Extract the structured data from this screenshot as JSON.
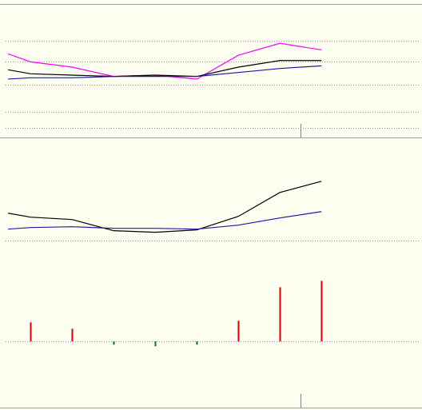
{
  "chart_data": [
    {
      "type": "line",
      "x": [
        0.46,
        1,
        2,
        3,
        4,
        5,
        6,
        7,
        8
      ],
      "xlim": [
        0.4,
        10.38
      ],
      "ylim": [
        0,
        100
      ],
      "yticks": [
        7,
        19,
        40,
        57,
        73
      ],
      "grid": true,
      "series": [
        {
          "color": "#ff00ff",
          "values": [
            63,
            57,
            53,
            46,
            47,
            44,
            62,
            71,
            66
          ]
        },
        {
          "color": "#000000",
          "values": [
            51,
            48,
            47,
            46,
            47,
            46,
            53,
            58,
            58
          ]
        },
        {
          "color": "#1a1aa8",
          "values": [
            44,
            45,
            45,
            46,
            46,
            46,
            49,
            52,
            54
          ]
        }
      ]
    },
    {
      "type": "bar_line",
      "x": [
        0.46,
        1,
        2,
        3,
        4,
        5,
        6,
        7,
        8
      ],
      "xlim": [
        0.4,
        10.38
      ],
      "ylim": [
        -83,
        255
      ],
      "yticks": [
        0,
        127
      ],
      "grid": true,
      "series": [
        {
          "color": "#000000",
          "values": [
            161,
            156,
            153,
            139,
            137,
            140,
            157,
            187,
            201
          ]
        },
        {
          "color": "#1a1aa8",
          "values": [
            141,
            143,
            144,
            142,
            142,
            141,
            146,
            155,
            163
          ]
        }
      ],
      "bars": {
        "x": [
          1,
          2,
          3,
          4,
          5,
          6,
          7,
          8
        ],
        "values": [
          24,
          16,
          -4,
          -6,
          -4,
          26,
          68,
          76
        ],
        "up_color": "#e00000",
        "down_color": "#008000"
      }
    }
  ]
}
